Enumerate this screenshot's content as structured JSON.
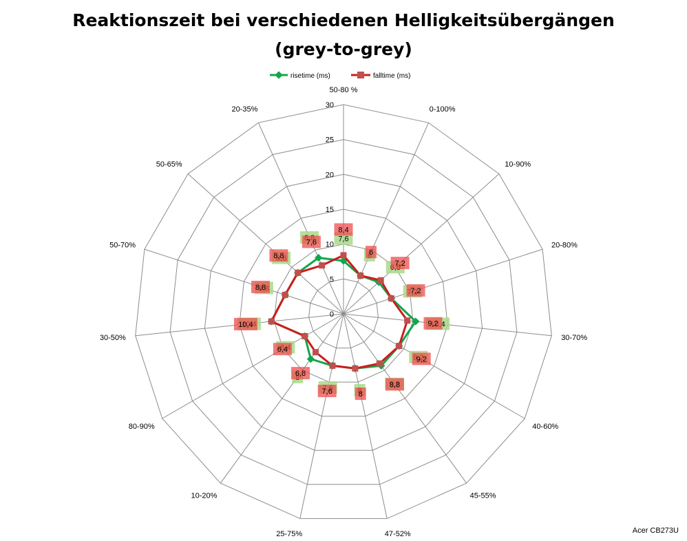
{
  "chart_data": {
    "type": "radar",
    "title": "Reaktionszeit bei verschiedenen Helligkeitsübergängen",
    "subtitle": "(grey-to-grey)",
    "categories": [
      "50-80 %",
      "0-100%",
      "10-90%",
      "20-80%",
      "30-70%",
      "40-60%",
      "45-55%",
      "47-52%",
      "25-75%",
      "10-20%",
      "80-90%",
      "30-50%",
      "50-70%",
      "50-65%",
      "20-35%"
    ],
    "rlim": [
      0,
      30
    ],
    "ticks": [
      "0",
      "5",
      "10",
      "15",
      "20",
      "25",
      "30"
    ],
    "tick_values": [
      0,
      5,
      10,
      15,
      20,
      25,
      30
    ],
    "grid": true,
    "legend_position": "top",
    "series": [
      {
        "name": "risetime (ms)",
        "color": "#12a64b",
        "label_bg": "#a9d98a",
        "values": [
          7.6,
          6.0,
          6.8,
          7.2,
          10.4,
          9.2,
          9.2,
          8.0,
          7.6,
          8.0,
          6.4,
          10.4,
          8.8,
          8.8,
          8.8
        ],
        "labels": [
          "7,6",
          "6",
          "6,8",
          "7,2",
          "10,4",
          "9,2",
          "9,2",
          "8",
          "7,6",
          "8",
          "6,4",
          "10,4",
          "8,8",
          "8,8",
          "8,8"
        ]
      },
      {
        "name": "falltime (ms)",
        "color": "#cc1c1c",
        "label_bg": "#ee4d4d",
        "values": [
          8.4,
          6.0,
          7.2,
          7.2,
          9.2,
          9.2,
          8.8,
          8.0,
          7.6,
          6.8,
          6.4,
          10.4,
          8.8,
          8.8,
          7.6
        ],
        "labels": [
          "8,4",
          "6",
          "7,2",
          "7,2",
          "9,2",
          "9,2",
          "8,8",
          "8",
          "7,6",
          "6,8",
          "6,4",
          "10,4",
          "8,8",
          "8,8",
          "7,6"
        ]
      }
    ]
  },
  "watermark": "Acer CB273U"
}
